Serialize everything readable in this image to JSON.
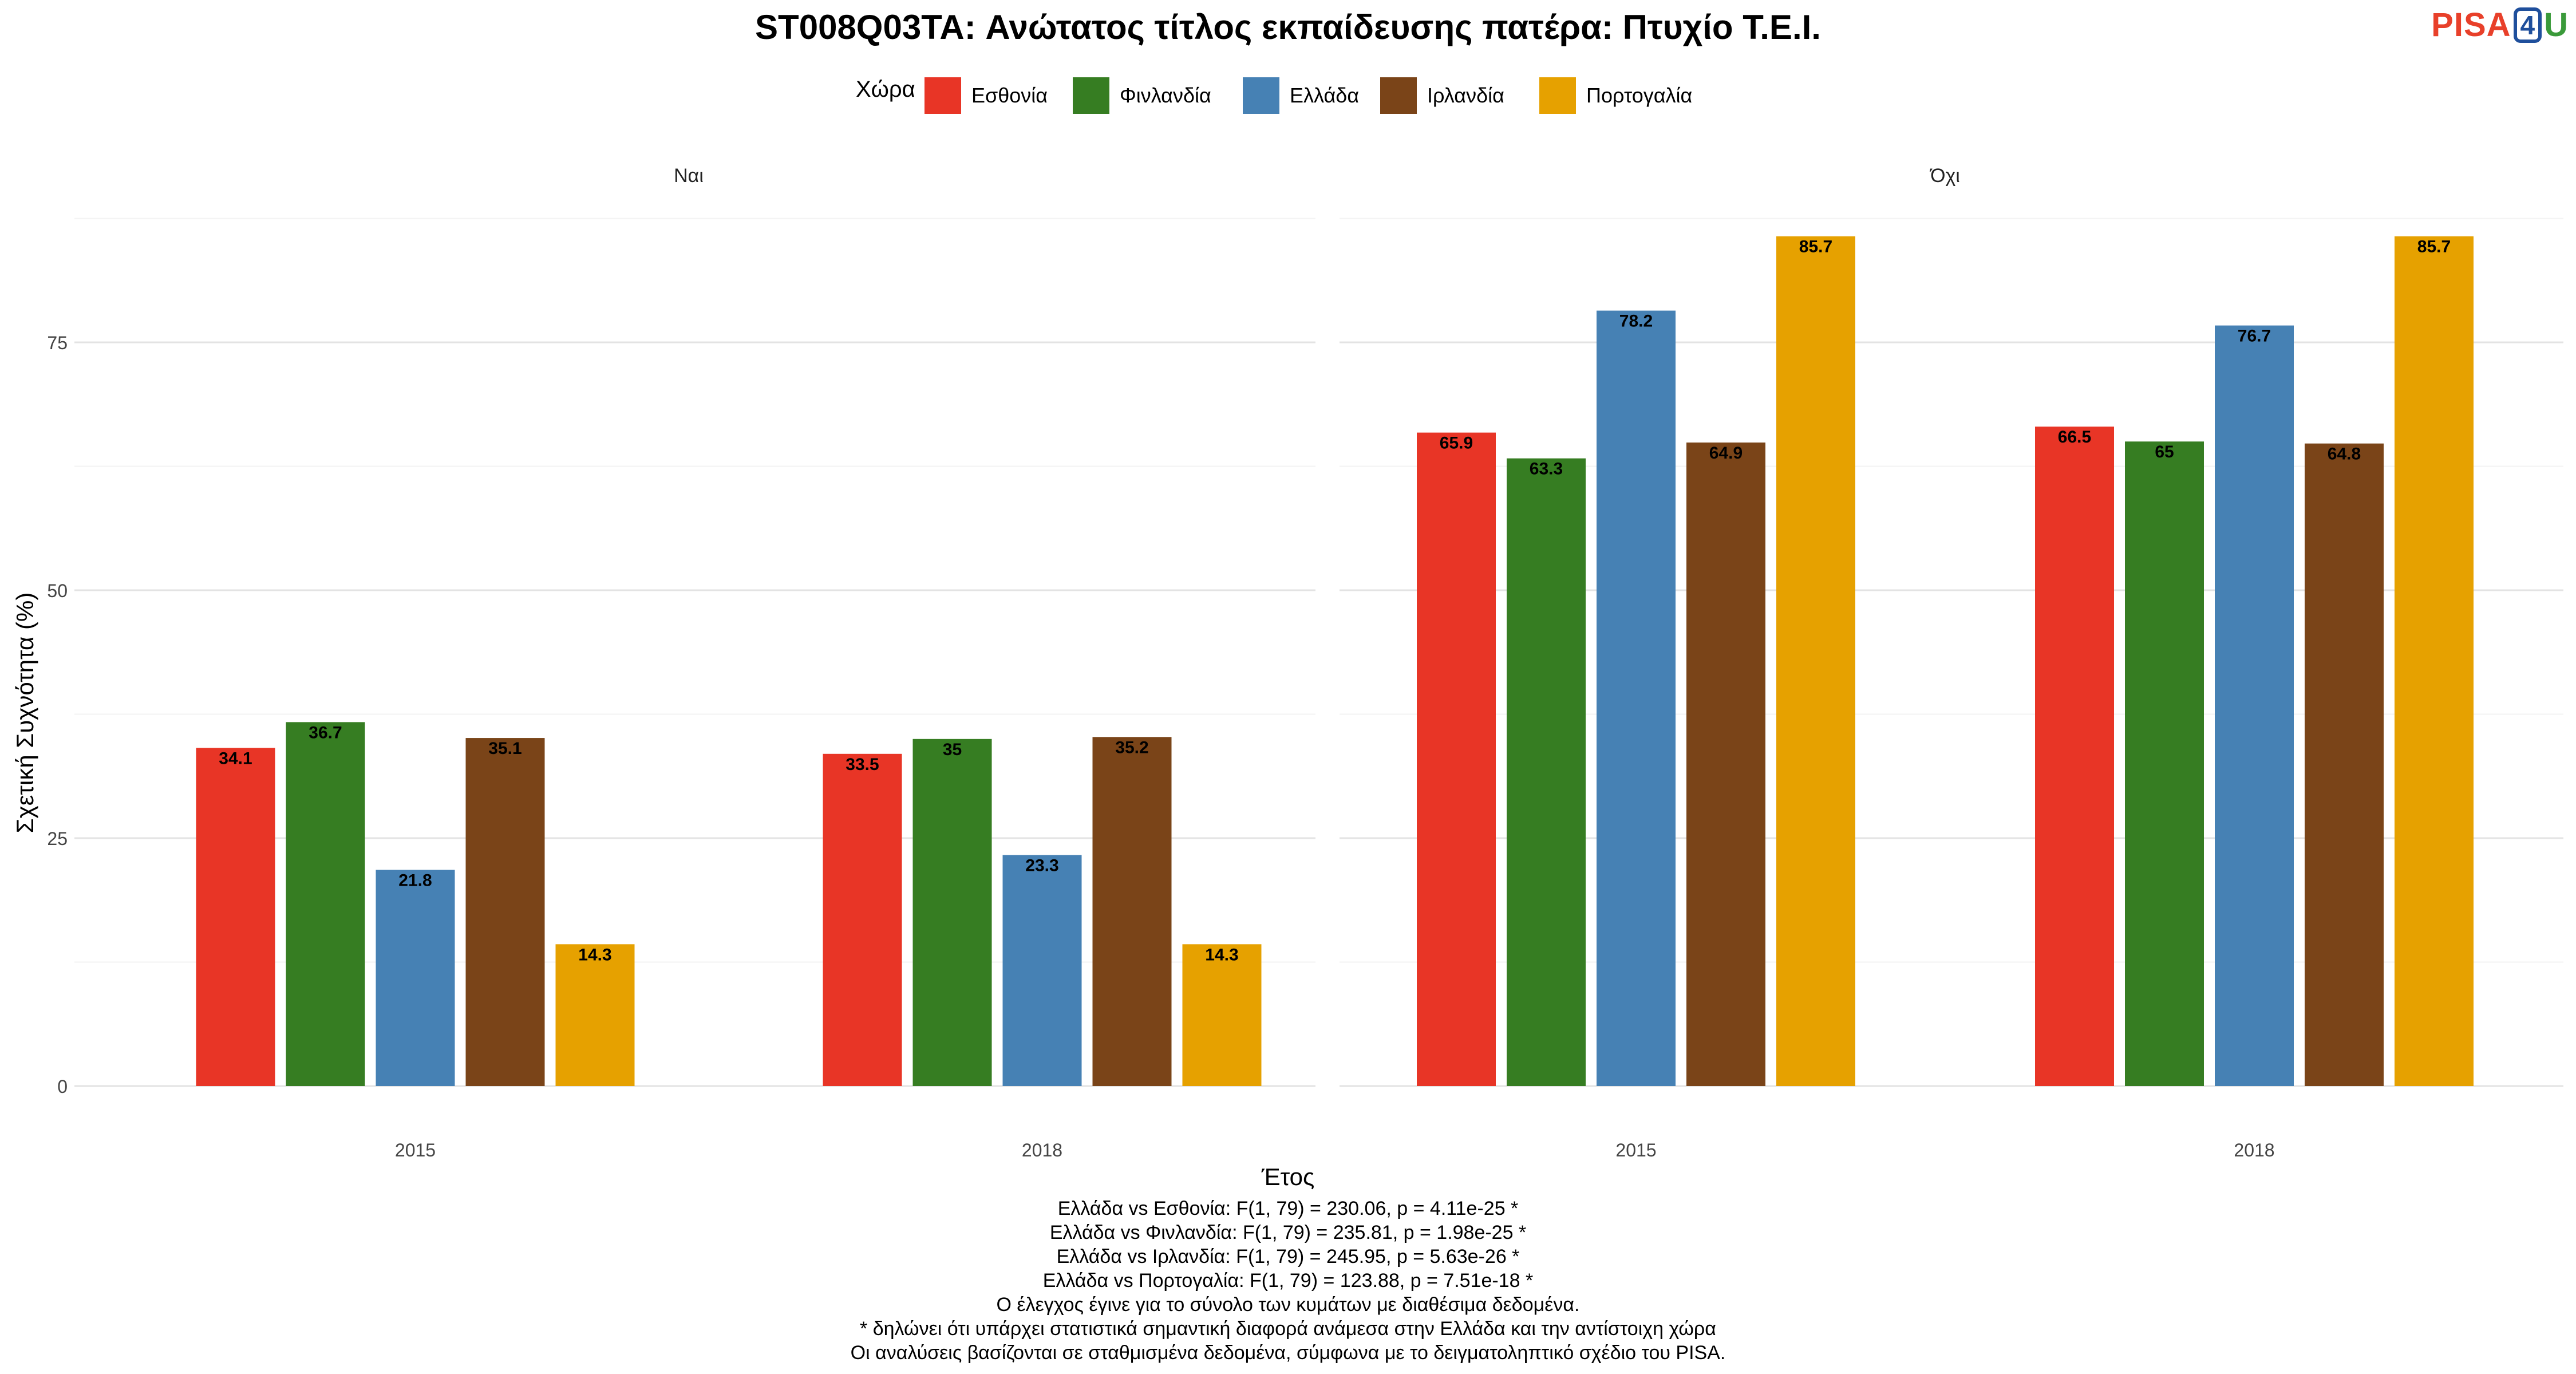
{
  "chart_data": {
    "type": "bar",
    "title": "ST008Q03TA: Ανώτατος τίτλος εκπαίδευσης πατέρα: Πτυχίο Τ.Ε.Ι.",
    "xlabel": "Έτος",
    "ylabel": "Σχετική Συχνότητα (%)",
    "ylim": [
      0,
      90
    ],
    "yticks": [
      "0",
      "25",
      "50",
      "75"
    ],
    "grid": true,
    "legend": {
      "title": "Χώρα",
      "position": "top",
      "entries": [
        {
          "name": "Εσθονία",
          "color": "#e83526"
        },
        {
          "name": "Φινλανδία",
          "color": "#367d22"
        },
        {
          "name": "Ελλάδα",
          "color": "#4681b4"
        },
        {
          "name": "Ιρλανδία",
          "color": "#7a4418"
        },
        {
          "name": "Πορτογαλία",
          "color": "#e6a100"
        }
      ]
    },
    "panels": [
      {
        "facet": "Ναι",
        "categories": [
          "2015",
          "2018"
        ],
        "series": [
          {
            "name": "Εσθονία",
            "values": [
              34.1,
              33.5
            ],
            "labels": [
              "34.1",
              "33.5"
            ]
          },
          {
            "name": "Φινλανδία",
            "values": [
              36.7,
              35
            ],
            "labels": [
              "36.7",
              "35"
            ]
          },
          {
            "name": "Ελλάδα",
            "values": [
              21.8,
              23.3
            ],
            "labels": [
              "21.8",
              "23.3"
            ]
          },
          {
            "name": "Ιρλανδία",
            "values": [
              35.1,
              35.2
            ],
            "labels": [
              "35.1",
              "35.2"
            ]
          },
          {
            "name": "Πορτογαλία",
            "values": [
              14.3,
              14.3
            ],
            "labels": [
              "14.3",
              "14.3"
            ]
          }
        ]
      },
      {
        "facet": "Όχι",
        "categories": [
          "2015",
          "2018"
        ],
        "series": [
          {
            "name": "Εσθονία",
            "values": [
              65.9,
              66.5
            ],
            "labels": [
              "65.9",
              "66.5"
            ]
          },
          {
            "name": "Φινλανδία",
            "values": [
              63.3,
              65
            ],
            "labels": [
              "63.3",
              "65"
            ]
          },
          {
            "name": "Ελλάδα",
            "values": [
              78.2,
              76.7
            ],
            "labels": [
              "78.2",
              "76.7"
            ]
          },
          {
            "name": "Ιρλανδία",
            "values": [
              64.9,
              64.8
            ],
            "labels": [
              "64.9",
              "64.8"
            ]
          },
          {
            "name": "Πορτογαλία",
            "values": [
              85.7,
              85.7
            ],
            "labels": [
              "85.7",
              "85.7"
            ]
          }
        ]
      }
    ]
  },
  "logo": {
    "part1": "PISA",
    "part2": "4",
    "part3": "U"
  },
  "caption": [
    "Ελλάδα vs Εσθονία: F(1, 79) = 230.06, p = 4.11e-25 *",
    "Ελλάδα vs Φινλανδία: F(1, 79) = 235.81, p = 1.98e-25 *",
    "Ελλάδα vs Ιρλανδία: F(1, 79) = 245.95, p = 5.63e-26 *",
    "Ελλάδα vs Πορτογαλία: F(1, 79) = 123.88, p = 7.51e-18 *",
    "Ο έλεγχος έγινε για το σύνολο των κυμάτων με διαθέσιμα δεδομένα.",
    "* δηλώνει ότι υπάρχει στατιστικά σημαντική διαφορά ανάμεσα στην Ελλάδα και την αντίστοιχη χώρα",
    "Οι αναλύσεις βασίζονται σε σταθμισμένα δεδομένα, σύμφωνα με το δειγματοληπτικό σχέδιο του PISA."
  ]
}
